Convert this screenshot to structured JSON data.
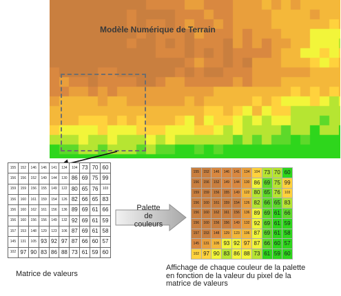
{
  "dem_title": "Modèle Numérique de Terrain",
  "palette_label": [
    "Palette",
    "de",
    "couleurs"
  ],
  "matrix_label": "Matrice de valeurs",
  "caption_lines": [
    "Affichage de chaque couleur de la palette",
    "en fonction de la valeur du pixel de la",
    "matrice de valeurs"
  ],
  "matrix_values": [
    [
      155,
      152,
      146,
      146,
      141,
      134,
      104,
      73,
      70,
      60
    ],
    [
      156,
      156,
      152,
      149,
      144,
      130,
      86,
      69,
      75,
      99
    ],
    [
      159,
      159,
      156,
      155,
      149,
      122,
      80,
      65,
      76,
      103
    ],
    [
      156,
      160,
      161,
      159,
      154,
      126,
      82,
      66,
      65,
      83
    ],
    [
      156,
      160,
      162,
      161,
      156,
      136,
      89,
      69,
      61,
      66
    ],
    [
      156,
      160,
      156,
      156,
      149,
      132,
      92,
      69,
      61,
      59
    ],
    [
      157,
      153,
      148,
      129,
      123,
      106,
      87,
      69,
      61,
      58
    ],
    [
      145,
      131,
      105,
      93,
      92,
      97,
      87,
      66,
      60,
      57
    ],
    [
      102,
      97,
      90,
      83,
      86,
      88,
      73,
      61,
      59,
      60
    ]
  ],
  "palette_colors": {
    "very_high": "#c97f3f",
    "high": "#d98840",
    "mid_high": "#e99f3c",
    "mid": "#f4b83a",
    "mid_low": "#ffd23d",
    "yellow": "#f2f53a",
    "yellow_green": "#b6e532",
    "green": "#5dd92a",
    "bright_green": "#2ed61c"
  }
}
